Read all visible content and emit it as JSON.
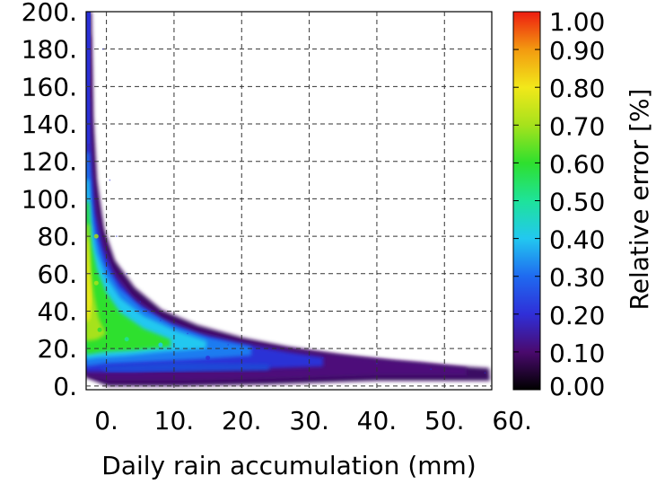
{
  "chart_data": {
    "type": "heatmap",
    "title": "",
    "xlabel": "Daily rain accumulation (mm)",
    "ylabel": "",
    "xlim": [
      -3,
      57
    ],
    "ylim": [
      -2,
      200
    ],
    "x_ticks": [
      "0.",
      "10.",
      "20.",
      "30.",
      "40.",
      "50.",
      "60."
    ],
    "y_ticks": [
      "0.",
      "20.",
      "40.",
      "60.",
      "80.",
      "100.",
      "120.",
      "140.",
      "160.",
      "180.",
      "200."
    ],
    "grid": true,
    "colorbar": {
      "label": "Relative error [%]",
      "range": [
        0.0,
        1.0
      ],
      "ticks": [
        "0.00",
        "0.10",
        "0.20",
        "0.30",
        "0.40",
        "0.50",
        "0.60",
        "0.70",
        "0.80",
        "0.90",
        "1.00"
      ],
      "colormap": "rainbow (black-purple-blue-cyan-green-yellow-orange-red)"
    },
    "ridge": [
      {
        "x": -0.5,
        "y": 180
      },
      {
        "x": 0.5,
        "y": 110
      },
      {
        "x": 1.5,
        "y": 80
      },
      {
        "x": 3,
        "y": 60
      },
      {
        "x": 5,
        "y": 45
      },
      {
        "x": 8,
        "y": 35
      },
      {
        "x": 12,
        "y": 28
      },
      {
        "x": 18,
        "y": 22
      },
      {
        "x": 25,
        "y": 18
      },
      {
        "x": 32,
        "y": 15
      },
      {
        "x": 40,
        "y": 12
      },
      {
        "x": 48,
        "y": 9
      },
      {
        "x": 56,
        "y": 7
      }
    ],
    "hotspots": [
      {
        "x": -1.5,
        "y": 55,
        "value": 0.78
      },
      {
        "x": -1.5,
        "y": 80,
        "value": 0.72
      },
      {
        "x": -1,
        "y": 30,
        "value": 0.68
      },
      {
        "x": 3,
        "y": 25,
        "value": 0.55
      },
      {
        "x": 8,
        "y": 22,
        "value": 0.45
      },
      {
        "x": 15,
        "y": 15,
        "value": 0.28
      }
    ]
  }
}
